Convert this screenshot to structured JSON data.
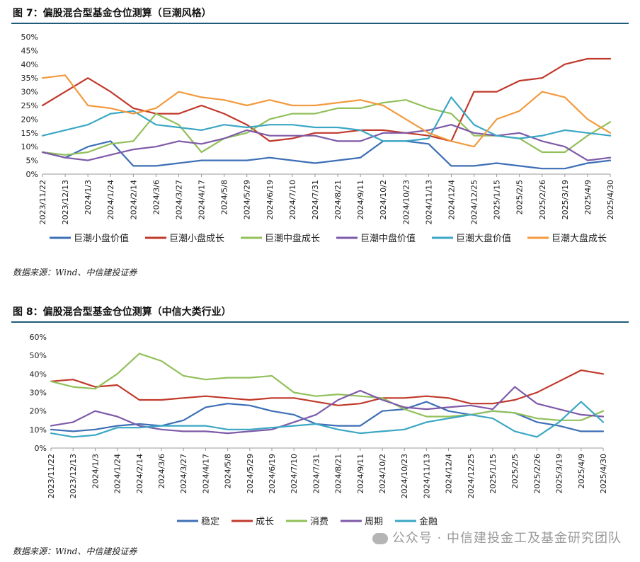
{
  "figure1": {
    "title": "图 7：偏股混合型基金仓位测算（巨潮风格）",
    "source": "数据来源：Wind、中信建投证券"
  },
  "figure2": {
    "title": "图 8：偏股混合型基金仓位测算（中信大类行业）",
    "source": "数据来源：Wind、中信建投证券"
  },
  "watermark": "公众号 · 中信建投金工及基金研究团队",
  "chart_data": [
    {
      "type": "line",
      "title": "",
      "ylim": [
        0,
        50
      ],
      "ytick_step": 5,
      "y_unit": "%",
      "categories": [
        "2023/11/22",
        "2023/12/13",
        "2024/1/3",
        "2024/1/24",
        "2024/2/14",
        "2024/3/6",
        "2024/3/27",
        "2024/4/17",
        "2024/5/8",
        "2024/5/29",
        "2024/6/19",
        "2024/7/10",
        "2024/7/31",
        "2024/8/21",
        "2024/9/11",
        "2024/10/2",
        "2024/10/23",
        "2024/11/13",
        "2024/12/4",
        "2024/12/25",
        "2025/1/15",
        "2025/2/5",
        "2025/2/26",
        "2025/3/19",
        "2025/4/9",
        "2025/4/30"
      ],
      "legend_position": "bottom",
      "series": [
        {
          "name": "巨潮小盘价值",
          "color": "#3d6fb6",
          "values": [
            8,
            6,
            10,
            12,
            3,
            3,
            4,
            5,
            5,
            5,
            6,
            5,
            4,
            5,
            6,
            12,
            12,
            11,
            3,
            3,
            4,
            3,
            2,
            2,
            4,
            5
          ]
        },
        {
          "name": "巨潮小盘成长",
          "color": "#c0392b",
          "values": [
            25,
            30,
            35,
            30,
            24,
            22,
            22,
            25,
            22,
            18,
            12,
            13,
            15,
            15,
            16,
            16,
            15,
            14,
            12,
            30,
            30,
            34,
            35,
            40,
            42,
            42
          ]
        },
        {
          "name": "巨潮中盘成长",
          "color": "#92c05a",
          "values": [
            8,
            7,
            8,
            11,
            12,
            22,
            18,
            8,
            13,
            15,
            20,
            22,
            22,
            24,
            24,
            26,
            27,
            24,
            22,
            14,
            14,
            13,
            8,
            8,
            14,
            19
          ]
        },
        {
          "name": "巨潮中盘价值",
          "color": "#7e5aa8",
          "values": [
            8,
            6,
            5,
            7,
            9,
            10,
            12,
            11,
            13,
            16,
            14,
            14,
            14,
            12,
            12,
            15,
            15,
            16,
            18,
            15,
            14,
            15,
            12,
            10,
            5,
            6
          ]
        },
        {
          "name": "巨潮大盘价值",
          "color": "#3ba7c4",
          "values": [
            14,
            16,
            18,
            22,
            23,
            18,
            17,
            16,
            18,
            17,
            18,
            18,
            17,
            17,
            16,
            12,
            12,
            13,
            28,
            18,
            14,
            13,
            14,
            16,
            15,
            14
          ]
        },
        {
          "name": "巨潮大盘成长",
          "color": "#f39a3e",
          "values": [
            35,
            36,
            25,
            24,
            22,
            24,
            30,
            28,
            27,
            25,
            27,
            25,
            25,
            26,
            27,
            25,
            20,
            15,
            12,
            10,
            20,
            23,
            30,
            28,
            20,
            15
          ]
        }
      ]
    },
    {
      "type": "line",
      "title": "",
      "ylim": [
        0,
        60
      ],
      "ytick_step": 10,
      "y_unit": "%",
      "categories": [
        "2023/11/22",
        "2023/12/13",
        "2024/1/3",
        "2024/1/24",
        "2024/2/14",
        "2024/3/6",
        "2024/3/27",
        "2024/4/17",
        "2024/5/8",
        "2024/5/29",
        "2024/6/19",
        "2024/7/10",
        "2024/7/31",
        "2024/8/21",
        "2024/9/11",
        "2024/10/2",
        "2024/10/23",
        "2024/11/13",
        "2024/12/4",
        "2024/12/25",
        "2025/1/15",
        "2025/2/5",
        "2025/2/26",
        "2025/3/19",
        "2025/4/9",
        "2025/4/30"
      ],
      "legend_position": "bottom",
      "series": [
        {
          "name": "稳定",
          "color": "#3d6fb6",
          "values": [
            10,
            9,
            10,
            12,
            13,
            12,
            15,
            22,
            24,
            23,
            20,
            18,
            13,
            12,
            12,
            20,
            21,
            25,
            20,
            18,
            20,
            19,
            14,
            12,
            9,
            9
          ]
        },
        {
          "name": "成长",
          "color": "#c0392b",
          "values": [
            36,
            37,
            33,
            34,
            26,
            26,
            27,
            28,
            27,
            26,
            27,
            27,
            25,
            23,
            24,
            27,
            27,
            28,
            27,
            24,
            24,
            26,
            30,
            36,
            42,
            40
          ]
        },
        {
          "name": "消费",
          "color": "#92c05a",
          "values": [
            36,
            33,
            32,
            40,
            51,
            47,
            39,
            37,
            38,
            38,
            39,
            30,
            28,
            29,
            28,
            27,
            21,
            17,
            17,
            18,
            20,
            19,
            16,
            15,
            15,
            20
          ]
        },
        {
          "name": "周期",
          "color": "#7e5aa8",
          "values": [
            12,
            14,
            20,
            17,
            12,
            10,
            9,
            9,
            8,
            9,
            10,
            14,
            18,
            26,
            31,
            26,
            22,
            21,
            22,
            23,
            21,
            33,
            24,
            21,
            18,
            17
          ]
        },
        {
          "name": "金融",
          "color": "#3ba7c4",
          "values": [
            8,
            6,
            7,
            11,
            11,
            12,
            12,
            12,
            10,
            10,
            11,
            12,
            13,
            10,
            8,
            9,
            10,
            14,
            16,
            18,
            16,
            9,
            6,
            14,
            25,
            14
          ]
        }
      ]
    }
  ]
}
